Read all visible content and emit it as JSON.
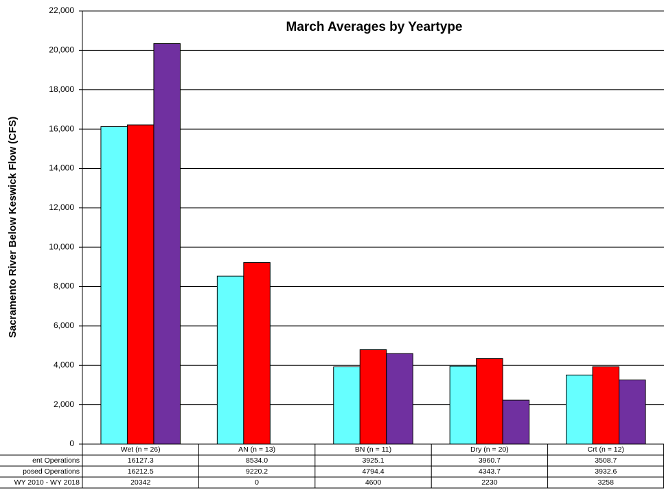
{
  "chart_data": {
    "type": "bar",
    "title": "March Averages by Yeartype",
    "ylabel": "Sacramento River Below Keswick Flow (CFS)",
    "categories": [
      "Wet (n = 26)",
      "AN  (n = 13)",
      "BN  (n = 11)",
      "Dry (n = 20)",
      "Crt (n = 12)"
    ],
    "series": [
      {
        "name": "ent Operations",
        "color": "#66ffff",
        "values": [
          16127.3,
          8534.0,
          3925.1,
          3960.7,
          3508.7
        ],
        "value_labels": [
          "16127.3",
          "8534.0",
          "3925.1",
          "3960.7",
          "3508.7"
        ]
      },
      {
        "name": "posed Operations",
        "color": "#ff0000",
        "values": [
          16212.5,
          9220.2,
          4794.4,
          4343.7,
          3932.6
        ],
        "value_labels": [
          "16212.5",
          "9220.2",
          "4794.4",
          "4343.7",
          "3932.6"
        ]
      },
      {
        "name": "WY 2010 - WY 2018",
        "color": "#7030a0",
        "values": [
          20342,
          0,
          4600,
          2230,
          3258
        ]
      }
    ],
    "ylim": [
      0,
      22000
    ],
    "yticks": [
      0,
      {
        "value": 2000,
        "label": "2,000"
      },
      {
        "value": 4000,
        "label": "4,000"
      },
      {
        "value": 6000,
        "label": "6,000"
      },
      {
        "value": 8000,
        "label": "8,000"
      },
      {
        "value": 10000,
        "label": "10,000"
      },
      {
        "value": 12000,
        "label": "12,000"
      },
      {
        "value": 14000,
        "label": "14,000"
      },
      {
        "value": 16000,
        "label": "16,000"
      },
      {
        "value": 18000,
        "label": "18,000"
      },
      {
        "value": 20000,
        "label": "20,000"
      },
      {
        "value": 22000,
        "label": "22,000"
      }
    ],
    "grid": true
  }
}
